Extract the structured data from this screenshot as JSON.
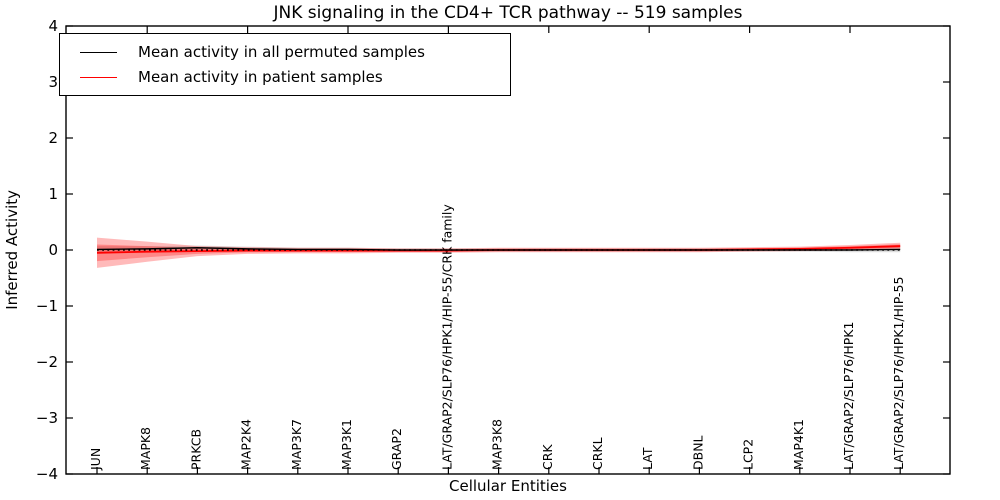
{
  "chart_data": {
    "type": "line",
    "title": "JNK signaling in the CD4+ TCR pathway -- 519 samples",
    "xlabel": "Cellular Entities",
    "ylabel": "Inferred Activity",
    "ylim": [
      -4,
      4
    ],
    "ytick_labels": [
      "4",
      "3",
      "2",
      "1",
      "0",
      "−1",
      "−2",
      "−3",
      "−4"
    ],
    "grid": false,
    "legend_position": "upper left",
    "categories": [
      "JUN",
      "MAPK8",
      "PRKCB",
      "MAP2K4",
      "MAP3K7",
      "MAP3K1",
      "GRAP2",
      "LAT/GRAP2/SLP76/HPK1/HIP-55/CRK family",
      "MAP3K8",
      "CRK",
      "CRKL",
      "LAT",
      "DBNL",
      "LCP2",
      "MAP4K1",
      "LAT/GRAP2/SLP76/HPK1",
      "LAT/GRAP2/SLP76/HPK1/HIP-55"
    ],
    "series": [
      {
        "name": "Mean activity in all permuted samples",
        "color": "#000000",
        "line_style": "solid",
        "mean": [
          0.01,
          0.02,
          0.04,
          0.02,
          0.01,
          0.01,
          0.0,
          0.0,
          0.0,
          0.0,
          0.0,
          0.0,
          0.0,
          0.0,
          0.0,
          0.0,
          0.01
        ],
        "std": [
          0.06,
          0.05,
          0.04,
          0.04,
          0.03,
          0.03,
          0.03,
          0.03,
          0.03,
          0.03,
          0.03,
          0.03,
          0.03,
          0.03,
          0.03,
          0.04,
          0.05
        ]
      },
      {
        "name": "Mean activity in patient samples",
        "color": "#ff0000",
        "line_style": "solid",
        "mean": [
          -0.05,
          -0.03,
          -0.02,
          -0.01,
          -0.01,
          -0.01,
          -0.01,
          -0.01,
          0.0,
          0.0,
          0.0,
          0.0,
          0.0,
          0.01,
          0.02,
          0.04,
          0.07
        ],
        "std": [
          0.27,
          0.18,
          0.09,
          0.06,
          0.05,
          0.05,
          0.04,
          0.04,
          0.04,
          0.04,
          0.04,
          0.04,
          0.04,
          0.04,
          0.04,
          0.05,
          0.06
        ]
      }
    ],
    "reference_line": {
      "y": 0,
      "style": "dotted",
      "color": "#000000"
    }
  }
}
